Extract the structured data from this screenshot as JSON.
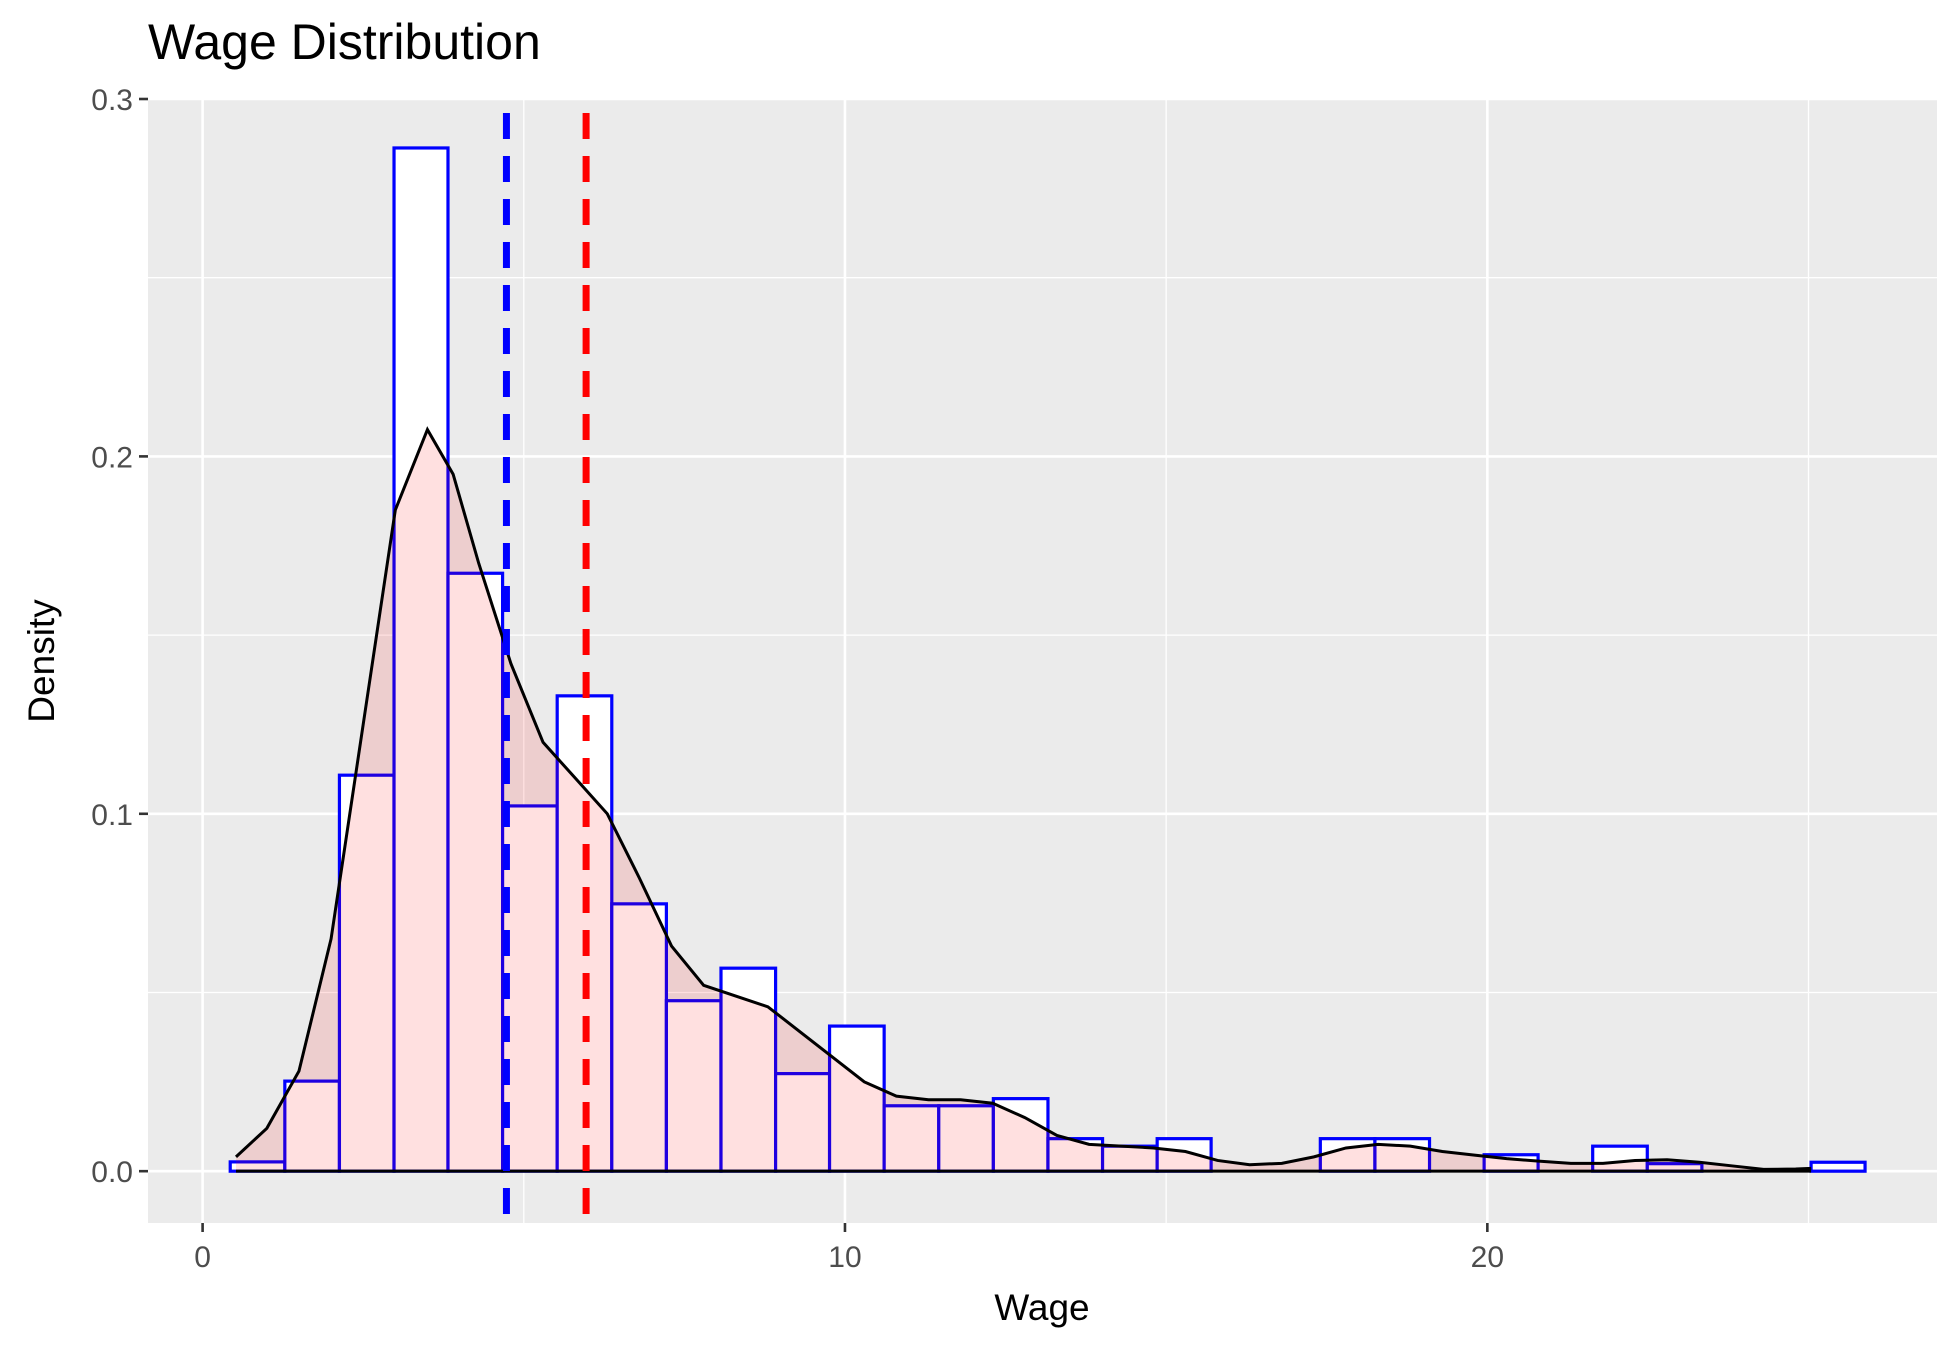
{
  "chart_data": {
    "type": "histogram",
    "title": "Wage Distribution",
    "xlabel": "Wage",
    "ylabel": "Density",
    "xlim": [
      -0.85,
      27.0
    ],
    "ylim": [
      -0.0145,
      0.3
    ],
    "x_ticks": [
      0,
      10,
      20
    ],
    "x_tick_labels": [
      "0",
      "10",
      "20"
    ],
    "y_ticks": [
      0.0,
      0.1,
      0.2,
      0.3
    ],
    "y_tick_labels": [
      "0.0",
      "0.1",
      "0.2",
      "0.3"
    ],
    "x_minor_ticks": [
      5,
      15,
      25
    ],
    "y_minor_ticks": [
      0.05,
      0.15,
      0.25
    ],
    "grid": true,
    "legend": "none",
    "bin_edges": [
      0.43,
      1.28,
      2.13,
      2.98,
      3.82,
      4.67,
      5.52,
      6.37,
      7.22,
      8.07,
      8.92,
      9.76,
      10.61,
      11.46,
      12.31,
      13.16,
      14.01,
      14.86,
      15.7,
      16.55,
      17.4,
      18.25,
      19.1,
      19.95,
      20.79,
      21.64,
      22.49,
      23.34,
      24.19,
      25.04,
      25.88
    ],
    "bin_densities": [
      0.0026,
      0.0252,
      0.1108,
      0.2863,
      0.1673,
      0.1022,
      0.133,
      0.0748,
      0.0477,
      0.0568,
      0.0273,
      0.0406,
      0.0183,
      0.0183,
      0.0203,
      0.0091,
      0.007,
      0.0091,
      0,
      0,
      0.0091,
      0.0091,
      0,
      0.0046,
      0,
      0.007,
      0.0021,
      0,
      0,
      0.0025
    ],
    "density_curve": {
      "x": [
        0.52,
        1.0,
        1.5,
        2.0,
        2.5,
        3.0,
        3.5,
        3.9,
        4.3,
        4.8,
        5.3,
        5.8,
        6.3,
        6.8,
        7.3,
        7.8,
        8.3,
        8.8,
        9.3,
        9.8,
        10.3,
        10.8,
        11.3,
        11.8,
        12.3,
        12.8,
        13.3,
        13.8,
        14.3,
        14.8,
        15.3,
        15.8,
        16.3,
        16.8,
        17.3,
        17.8,
        18.3,
        18.8,
        19.3,
        19.8,
        20.3,
        20.8,
        21.3,
        21.8,
        22.3,
        22.8,
        23.3,
        23.8,
        24.3,
        24.8,
        25.04
      ],
      "y": [
        0.004,
        0.012,
        0.028,
        0.065,
        0.125,
        0.185,
        0.2075,
        0.195,
        0.17,
        0.142,
        0.12,
        0.11,
        0.1,
        0.082,
        0.063,
        0.052,
        0.049,
        0.046,
        0.039,
        0.032,
        0.025,
        0.021,
        0.02,
        0.02,
        0.019,
        0.015,
        0.01,
        0.0075,
        0.007,
        0.0065,
        0.0055,
        0.003,
        0.0018,
        0.0022,
        0.004,
        0.0065,
        0.0075,
        0.007,
        0.0055,
        0.0045,
        0.0035,
        0.0028,
        0.0022,
        0.0022,
        0.003,
        0.0032,
        0.0025,
        0.0015,
        0.0005,
        0.0006,
        0.0008
      ]
    },
    "mean_line": {
      "x": 5.97,
      "color": "#FF0000",
      "style": "dashed"
    },
    "median_line": {
      "x": 4.73,
      "color": "#0000FF",
      "style": "dashed"
    },
    "colors": {
      "bar_outline": "#0000FF",
      "bar_fill": "#FFFFFF",
      "density_fill": "#FF0000",
      "density_line": "#000000",
      "panel_background": "#EBEBEB",
      "grid": "#FFFFFF"
    }
  }
}
